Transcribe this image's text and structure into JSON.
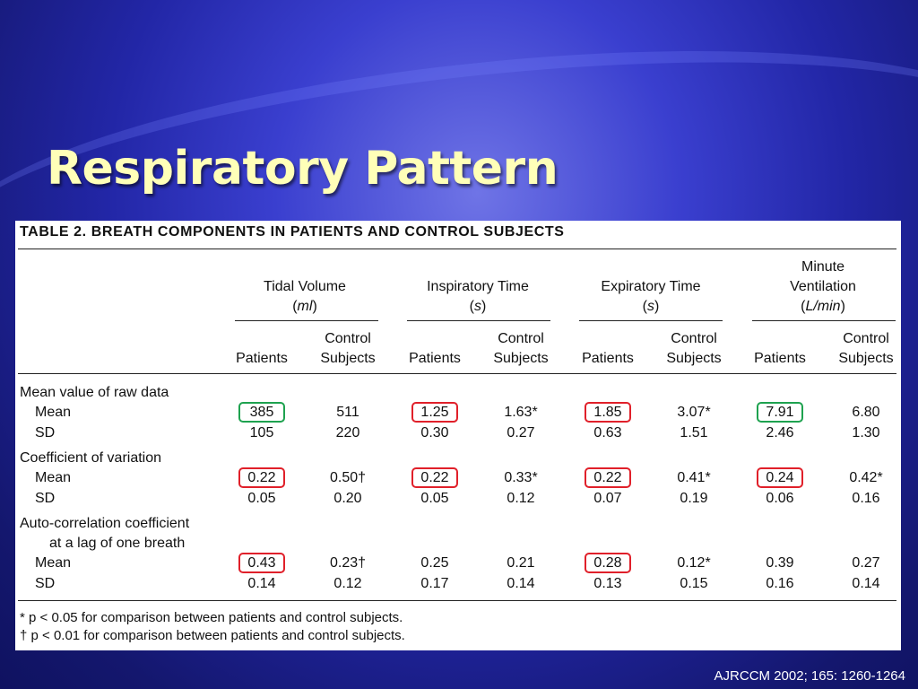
{
  "slide": {
    "title": "Respiratory Pattern",
    "citation": "AJRCCM 2002; 165: 1260-1264"
  },
  "table": {
    "title": "TABLE 2. BREATH COMPONENTS IN PATIENTS AND CONTROL SUBJECTS",
    "groups": [
      {
        "line1": "",
        "line2": "Tidal Volume",
        "unit": "ml"
      },
      {
        "line1": "",
        "line2": "Inspiratory Time",
        "unit": "s"
      },
      {
        "line1": "",
        "line2": "Expiratory Time",
        "unit": "s"
      },
      {
        "line1": "Minute",
        "line2": "Ventilation",
        "unit": "L/min"
      }
    ],
    "sub": {
      "patients": "Patients",
      "control1": "Control",
      "control2": "Subjects"
    },
    "sections": [
      {
        "heading": "Mean value of raw data",
        "heading2": "",
        "rows": [
          {
            "label": "Mean",
            "values": [
              "385",
              "511",
              "1.25",
              "1.63*",
              "1.85",
              "3.07*",
              "7.91",
              "6.80"
            ]
          },
          {
            "label": "SD",
            "values": [
              "105",
              "220",
              "0.30",
              "0.27",
              "0.63",
              "1.51",
              "2.46",
              "1.30"
            ]
          }
        ]
      },
      {
        "heading": "Coefficient of variation",
        "heading2": "",
        "rows": [
          {
            "label": "Mean",
            "values": [
              "0.22",
              "0.50†",
              "0.22",
              "0.33*",
              "0.22",
              "0.41*",
              "0.24",
              "0.42*"
            ]
          },
          {
            "label": "SD",
            "values": [
              "0.05",
              "0.20",
              "0.05",
              "0.12",
              "0.07",
              "0.19",
              "0.06",
              "0.16"
            ]
          }
        ]
      },
      {
        "heading": "Auto-correlation coefficient",
        "heading2": "at a lag of one breath",
        "rows": [
          {
            "label": "Mean",
            "values": [
              "0.43",
              "0.23†",
              "0.25",
              "0.21",
              "0.28",
              "0.12*",
              "0.39",
              "0.27"
            ]
          },
          {
            "label": "SD",
            "values": [
              "0.14",
              "0.12",
              "0.17",
              "0.14",
              "0.13",
              "0.15",
              "0.16",
              "0.14"
            ]
          }
        ]
      }
    ],
    "highlight_colors": {
      "green": "#1ea24f",
      "red": "#e0202a"
    },
    "highlights": [
      {
        "section": 0,
        "col": 0,
        "color": "green"
      },
      {
        "section": 0,
        "col": 2,
        "color": "red"
      },
      {
        "section": 0,
        "col": 4,
        "color": "red"
      },
      {
        "section": 0,
        "col": 6,
        "color": "green"
      },
      {
        "section": 1,
        "col": 0,
        "color": "red"
      },
      {
        "section": 1,
        "col": 2,
        "color": "red"
      },
      {
        "section": 1,
        "col": 4,
        "color": "red"
      },
      {
        "section": 1,
        "col": 6,
        "color": "red"
      },
      {
        "section": 2,
        "col": 0,
        "color": "red"
      },
      {
        "section": 2,
        "col": 4,
        "color": "red"
      }
    ],
    "footnotes": [
      "* p < 0.05 for comparison between patients and control subjects.",
      "† p < 0.01 for comparison between patients and control subjects."
    ]
  }
}
